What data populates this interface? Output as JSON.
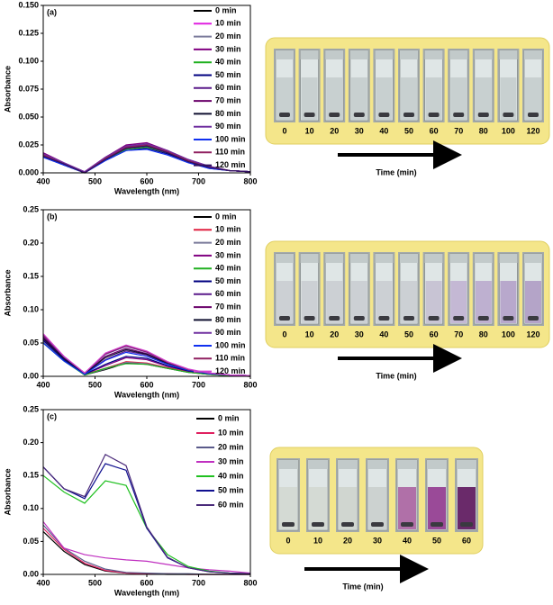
{
  "chart_data": [
    {
      "type": "line",
      "panel_label": "(a)",
      "x_label": "Wavelength (nm)",
      "y_label": "Absorbance",
      "x": [
        400,
        440,
        480,
        520,
        560,
        600,
        640,
        680,
        720,
        760,
        800
      ],
      "xlim": [
        400,
        800
      ],
      "xticks": [
        400,
        500,
        600,
        700,
        800
      ],
      "ylim": [
        0,
        0.15
      ],
      "yticks": [
        {
          "value": 0,
          "label": "0.000"
        },
        {
          "value": 0.025,
          "label": "0.025"
        },
        {
          "value": 0.05,
          "label": "0.050"
        },
        {
          "value": 0.075,
          "label": "0.075"
        },
        {
          "value": 0.1,
          "label": "0.100"
        },
        {
          "value": 0.125,
          "label": "0.125"
        },
        {
          "value": 0.15,
          "label": "0.150"
        }
      ],
      "series": [
        {
          "name": "0 min",
          "color": "#000000",
          "values": [
            0.016,
            0.008,
            0.0,
            0.013,
            0.023,
            0.025,
            0.019,
            0.011,
            0.005,
            0.002,
            0.001
          ]
        },
        {
          "name": "10 min",
          "color": "#e020e0",
          "values": [
            0.017,
            0.008,
            0.001,
            0.014,
            0.024,
            0.026,
            0.02,
            0.011,
            0.005,
            0.002,
            0.001
          ]
        },
        {
          "name": "20 min",
          "color": "#7a7a9a",
          "values": [
            0.015,
            0.007,
            0.0,
            0.012,
            0.022,
            0.024,
            0.018,
            0.01,
            0.005,
            0.002,
            0.001
          ]
        },
        {
          "name": "30 min",
          "color": "#800080",
          "values": [
            0.018,
            0.009,
            0.001,
            0.014,
            0.025,
            0.027,
            0.02,
            0.012,
            0.006,
            0.002,
            0.001
          ]
        },
        {
          "name": "40 min",
          "color": "#20b020",
          "values": [
            0.016,
            0.008,
            0.0,
            0.012,
            0.021,
            0.023,
            0.018,
            0.01,
            0.005,
            0.002,
            0.001
          ]
        },
        {
          "name": "50 min",
          "color": "#000080",
          "values": [
            0.014,
            0.007,
            0.0,
            0.011,
            0.02,
            0.022,
            0.017,
            0.01,
            0.004,
            0.002,
            0.001
          ]
        },
        {
          "name": "60 min",
          "color": "#5a1a8a",
          "values": [
            0.017,
            0.008,
            0.001,
            0.013,
            0.024,
            0.026,
            0.019,
            0.011,
            0.005,
            0.002,
            0.001
          ]
        },
        {
          "name": "70 min",
          "color": "#6a006a",
          "values": [
            0.016,
            0.008,
            0.0,
            0.013,
            0.023,
            0.025,
            0.019,
            0.011,
            0.005,
            0.002,
            0.001
          ]
        },
        {
          "name": "80 min",
          "color": "#101030",
          "values": [
            0.015,
            0.007,
            0.0,
            0.012,
            0.022,
            0.024,
            0.018,
            0.01,
            0.005,
            0.002,
            0.001
          ]
        },
        {
          "name": "90 min",
          "color": "#7030a0",
          "values": [
            0.017,
            0.009,
            0.001,
            0.014,
            0.024,
            0.026,
            0.02,
            0.012,
            0.006,
            0.002,
            0.001
          ]
        },
        {
          "name": "100 min",
          "color": "#1030f0",
          "values": [
            0.014,
            0.007,
            0.0,
            0.011,
            0.02,
            0.021,
            0.016,
            0.009,
            0.004,
            0.002,
            0.001
          ]
        },
        {
          "name": "110 min",
          "color": "#902060",
          "values": [
            0.016,
            0.008,
            0.0,
            0.013,
            0.023,
            0.025,
            0.019,
            0.011,
            0.005,
            0.002,
            0.001
          ]
        },
        {
          "name": "120 min",
          "color": "#301060",
          "values": [
            0.015,
            0.008,
            0.0,
            0.012,
            0.022,
            0.024,
            0.018,
            0.01,
            0.005,
            0.002,
            0.001
          ]
        }
      ]
    },
    {
      "type": "line",
      "panel_label": "(b)",
      "x_label": "Wavelength (nm)",
      "y_label": "Absorbance",
      "x": [
        400,
        440,
        480,
        520,
        560,
        600,
        640,
        680,
        720,
        760,
        800
      ],
      "xlim": [
        400,
        800
      ],
      "xticks": [
        400,
        500,
        600,
        700,
        800
      ],
      "ylim": [
        0,
        0.25
      ],
      "yticks": [
        {
          "value": 0,
          "label": "0.00"
        },
        {
          "value": 0.05,
          "label": "0.05"
        },
        {
          "value": 0.1,
          "label": "0.10"
        },
        {
          "value": 0.15,
          "label": "0.15"
        },
        {
          "value": 0.2,
          "label": "0.20"
        },
        {
          "value": 0.25,
          "label": "0.25"
        }
      ],
      "series": [
        {
          "name": "0 min",
          "color": "#000000",
          "values": [
            0.055,
            0.025,
            0.002,
            0.01,
            0.02,
            0.018,
            0.012,
            0.006,
            0.003,
            0.001,
            0.0
          ]
        },
        {
          "name": "10 min",
          "color": "#e02040",
          "values": [
            0.058,
            0.026,
            0.003,
            0.012,
            0.022,
            0.02,
            0.013,
            0.007,
            0.003,
            0.001,
            0.0
          ]
        },
        {
          "name": "20 min",
          "color": "#7a7a9a",
          "values": [
            0.052,
            0.024,
            0.002,
            0.011,
            0.021,
            0.019,
            0.012,
            0.006,
            0.003,
            0.001,
            0.0
          ]
        },
        {
          "name": "30 min",
          "color": "#800080",
          "values": [
            0.056,
            0.026,
            0.003,
            0.016,
            0.028,
            0.025,
            0.015,
            0.008,
            0.004,
            0.002,
            0.001
          ]
        },
        {
          "name": "40 min",
          "color": "#20b020",
          "values": [
            0.05,
            0.023,
            0.002,
            0.012,
            0.019,
            0.018,
            0.012,
            0.006,
            0.003,
            0.001,
            0.0
          ]
        },
        {
          "name": "50 min",
          "color": "#000080",
          "values": [
            0.054,
            0.025,
            0.003,
            0.018,
            0.03,
            0.027,
            0.016,
            0.008,
            0.004,
            0.002,
            0.001
          ]
        },
        {
          "name": "60 min",
          "color": "#5a1a8a",
          "values": [
            0.058,
            0.027,
            0.004,
            0.025,
            0.038,
            0.032,
            0.019,
            0.009,
            0.004,
            0.002,
            0.001
          ]
        },
        {
          "name": "70 min",
          "color": "#6a006a",
          "values": [
            0.06,
            0.028,
            0.004,
            0.03,
            0.042,
            0.034,
            0.02,
            0.01,
            0.005,
            0.002,
            0.001
          ]
        },
        {
          "name": "80 min",
          "color": "#101030",
          "values": [
            0.057,
            0.027,
            0.004,
            0.028,
            0.04,
            0.033,
            0.019,
            0.009,
            0.004,
            0.002,
            0.001
          ]
        },
        {
          "name": "90 min",
          "color": "#7030a0",
          "values": [
            0.062,
            0.029,
            0.005,
            0.033,
            0.045,
            0.036,
            0.021,
            0.01,
            0.005,
            0.002,
            0.001
          ]
        },
        {
          "name": "100 min",
          "color": "#1030f0",
          "values": [
            0.05,
            0.023,
            0.003,
            0.024,
            0.036,
            0.03,
            0.018,
            0.009,
            0.004,
            0.002,
            0.001
          ]
        },
        {
          "name": "110 min",
          "color": "#902060",
          "values": [
            0.063,
            0.03,
            0.005,
            0.034,
            0.046,
            0.037,
            0.021,
            0.01,
            0.005,
            0.002,
            0.001
          ]
        },
        {
          "name": "120 min",
          "color": "#d040d0",
          "values": [
            0.064,
            0.03,
            0.005,
            0.035,
            0.047,
            0.038,
            0.022,
            0.011,
            0.005,
            0.002,
            0.001
          ]
        }
      ]
    },
    {
      "type": "line",
      "panel_label": "(c)",
      "x_label": "Wavelength (nm)",
      "y_label": "Absorbance",
      "x": [
        400,
        440,
        480,
        520,
        560,
        600,
        640,
        680,
        720,
        760,
        800
      ],
      "xlim": [
        400,
        800
      ],
      "xticks": [
        400,
        500,
        600,
        700,
        800
      ],
      "ylim": [
        0,
        0.25
      ],
      "yticks": [
        {
          "value": 0,
          "label": "0.00"
        },
        {
          "value": 0.05,
          "label": "0.05"
        },
        {
          "value": 0.1,
          "label": "0.10"
        },
        {
          "value": 0.15,
          "label": "0.15"
        },
        {
          "value": 0.2,
          "label": "0.20"
        },
        {
          "value": 0.25,
          "label": "0.25"
        }
      ],
      "series": [
        {
          "name": "0 min",
          "color": "#000000",
          "values": [
            0.065,
            0.035,
            0.015,
            0.005,
            0.002,
            0.001,
            0.0,
            0.0,
            0.0,
            0.0,
            0.0
          ]
        },
        {
          "name": "10 min",
          "color": "#e02060",
          "values": [
            0.07,
            0.038,
            0.017,
            0.006,
            0.002,
            0.001,
            0.001,
            0.0,
            0.0,
            0.0,
            0.0
          ]
        },
        {
          "name": "20 min",
          "color": "#5a5a8a",
          "values": [
            0.075,
            0.04,
            0.02,
            0.008,
            0.003,
            0.002,
            0.001,
            0.001,
            0.0,
            0.0,
            0.0
          ]
        },
        {
          "name": "30 min",
          "color": "#c030c0",
          "values": [
            0.08,
            0.04,
            0.03,
            0.025,
            0.022,
            0.02,
            0.015,
            0.01,
            0.007,
            0.005,
            0.002
          ]
        },
        {
          "name": "40 min",
          "color": "#20c020",
          "values": [
            0.15,
            0.125,
            0.108,
            0.142,
            0.135,
            0.07,
            0.03,
            0.012,
            0.005,
            0.002,
            0.001
          ]
        },
        {
          "name": "50 min",
          "color": "#101090",
          "values": [
            0.163,
            0.13,
            0.115,
            0.168,
            0.158,
            0.07,
            0.025,
            0.01,
            0.004,
            0.002,
            0.001
          ]
        },
        {
          "name": "60 min",
          "color": "#4a2a7a",
          "values": [
            0.163,
            0.13,
            0.118,
            0.182,
            0.165,
            0.072,
            0.026,
            0.01,
            0.004,
            0.002,
            0.001
          ]
        }
      ]
    }
  ],
  "photo_panels": [
    {
      "labels": [
        "0",
        "10",
        "20",
        "30",
        "40",
        "50",
        "60",
        "70",
        "80",
        "100",
        "120"
      ],
      "caption": "Time (min)",
      "liquid_colors": [
        "#c8d0d0",
        "#c8d0d0",
        "#c8d0d0",
        "#c8d0d0",
        "#c8d0d0",
        "#c8d0d0",
        "#c8d0d0",
        "#c8d0d0",
        "#c8d0d0",
        "#c8d0d0",
        "#c8d0d0"
      ]
    },
    {
      "labels": [
        "0",
        "10",
        "20",
        "30",
        "40",
        "50",
        "60",
        "70",
        "80",
        "100",
        "120"
      ],
      "caption": "Time (min)",
      "liquid_colors": [
        "#ccd0d4",
        "#ccd0d4",
        "#ccd0d4",
        "#ccd0d4",
        "#ccd0d4",
        "#ccd0d4",
        "#c8c4d4",
        "#c4b8d4",
        "#beb0d0",
        "#b8a8cc",
        "#b4a4c8"
      ]
    },
    {
      "labels": [
        "0",
        "10",
        "20",
        "30",
        "40",
        "50",
        "60"
      ],
      "caption": "Time (min)",
      "liquid_colors": [
        "#d4dad4",
        "#d4dad4",
        "#d0d6d0",
        "#ccd2d0",
        "#b070a8",
        "#9a4a98",
        "#6a2a6a"
      ]
    }
  ]
}
